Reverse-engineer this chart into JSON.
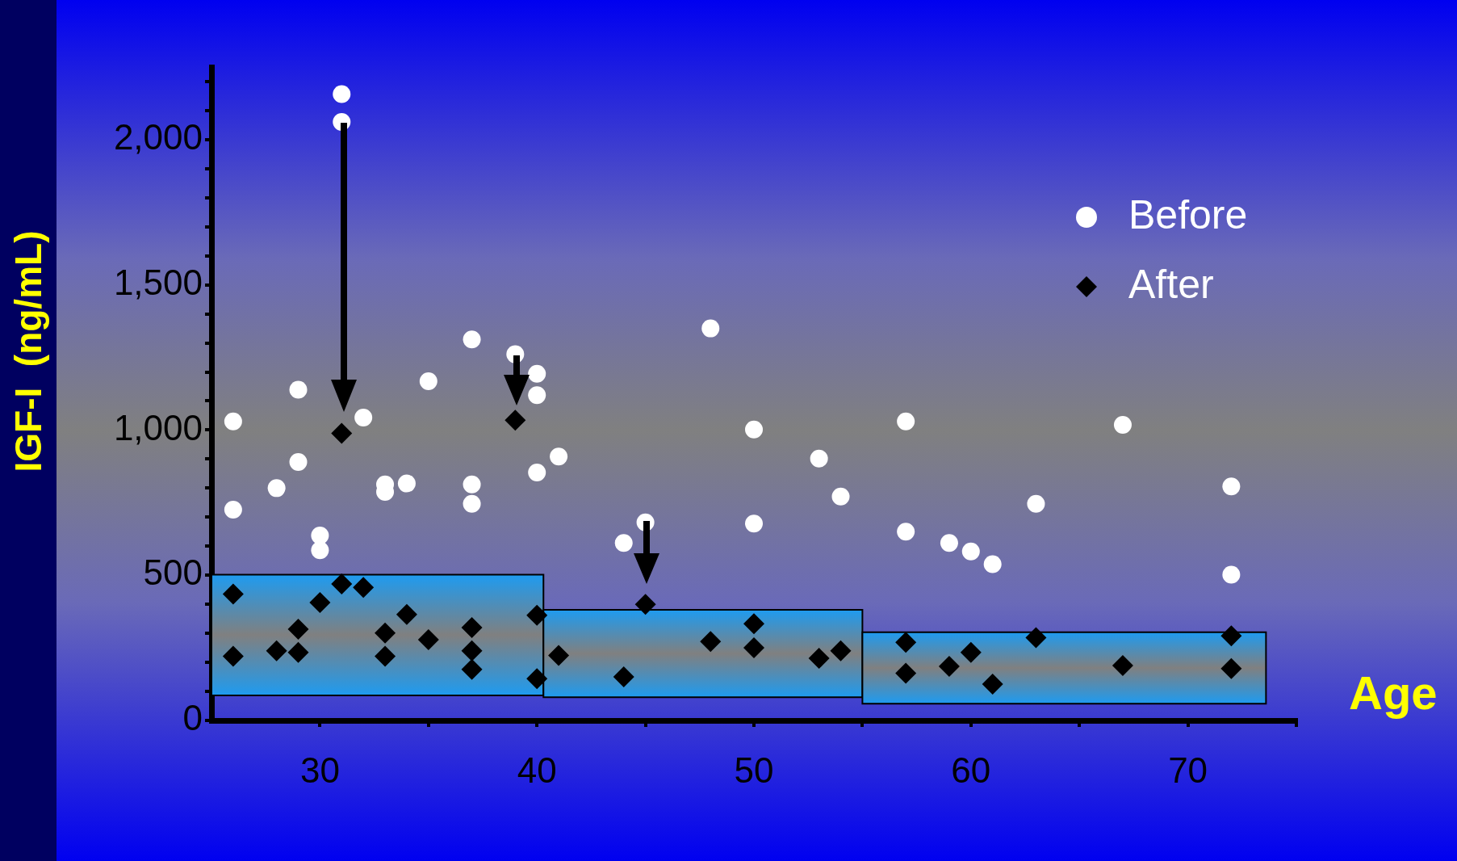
{
  "chart_data": {
    "type": "scatter",
    "xlabel": "Age",
    "ylabel": "IGF-I  (ng/mL)",
    "xlim": [
      25,
      75
    ],
    "xticks": [
      30,
      {
        "value": 35,
        "label": null
      },
      40,
      {
        "value": 45,
        "label": null
      },
      50,
      {
        "value": 55,
        "label": null
      },
      60,
      {
        "value": 65,
        "label": null
      },
      70,
      {
        "value": 75,
        "label": null
      }
    ],
    "ylim": [
      0,
      2250
    ],
    "yticks": [
      0,
      {
        "value": 100,
        "label": null
      },
      {
        "value": 200,
        "label": null
      },
      {
        "value": 300,
        "label": null
      },
      {
        "value": 400,
        "label": null
      },
      500,
      {
        "value": 600,
        "label": null
      },
      {
        "value": 700,
        "label": null
      },
      {
        "value": 800,
        "label": null
      },
      {
        "value": 900,
        "label": null
      },
      {
        "value": 1000,
        "label": "1,000"
      },
      {
        "value": 1100,
        "label": null
      },
      {
        "value": 1200,
        "label": null
      },
      {
        "value": 1300,
        "label": null
      },
      {
        "value": 1400,
        "label": null
      },
      {
        "value": 1500,
        "label": "1,500"
      },
      {
        "value": 1600,
        "label": null
      },
      {
        "value": 1700,
        "label": null
      },
      {
        "value": 1800,
        "label": null
      },
      {
        "value": 1900,
        "label": null
      },
      {
        "value": 2000,
        "label": "2,000"
      },
      {
        "value": 2100,
        "label": null
      },
      {
        "value": 2200,
        "label": null
      }
    ],
    "grid": false,
    "legend": "top right",
    "series": [
      {
        "type": "histogram",
        "color": "#1e9bf0",
        "bins": [
          25,
          40.3,
          55,
          73.6
        ],
        "base": [
          86,
          80,
          58
        ],
        "values": [
          416,
          301,
          246
        ]
      },
      {
        "name": "Before",
        "color": "#ffffff",
        "marker": "circle",
        "x": [
          26,
          26,
          28,
          29,
          29,
          30,
          30,
          31,
          31,
          32,
          33,
          33,
          34,
          35,
          37,
          37,
          37,
          39,
          40,
          40,
          40,
          41,
          44,
          45,
          48,
          50,
          50,
          53,
          54,
          57,
          57,
          59,
          60,
          61,
          63,
          67,
          72,
          72
        ],
        "values": [
          1030,
          726,
          800,
          1139,
          890,
          637,
          586,
          2157,
          2061,
          1043,
          813,
          787,
          816,
          1168,
          1312,
          813,
          746,
          1261,
          1194,
          1120,
          854,
          909,
          611,
          682,
          1350,
          1002,
          678,
          902,
          771,
          1030,
          650,
          611,
          582,
          538,
          746,
          1018,
          806,
          502
        ]
      },
      {
        "name": "After",
        "color": "#000000",
        "marker": "diamond",
        "x": [
          26,
          26,
          28,
          29,
          29,
          30,
          31,
          31,
          32,
          33,
          33,
          34,
          35,
          37,
          37,
          37,
          39,
          40,
          40,
          41,
          44,
          45,
          48,
          50,
          50,
          53,
          54,
          57,
          57,
          59,
          60,
          61,
          63,
          67,
          72,
          72
        ],
        "values": [
          435,
          221,
          240,
          314,
          234,
          406,
          989,
          470,
          458,
          301,
          221,
          365,
          278,
          320,
          240,
          176,
          1034,
          362,
          144,
          224,
          150,
          400,
          272,
          333,
          250,
          214,
          240,
          269,
          163,
          186,
          234,
          125,
          285,
          189,
          291,
          179
        ]
      }
    ]
  }
}
